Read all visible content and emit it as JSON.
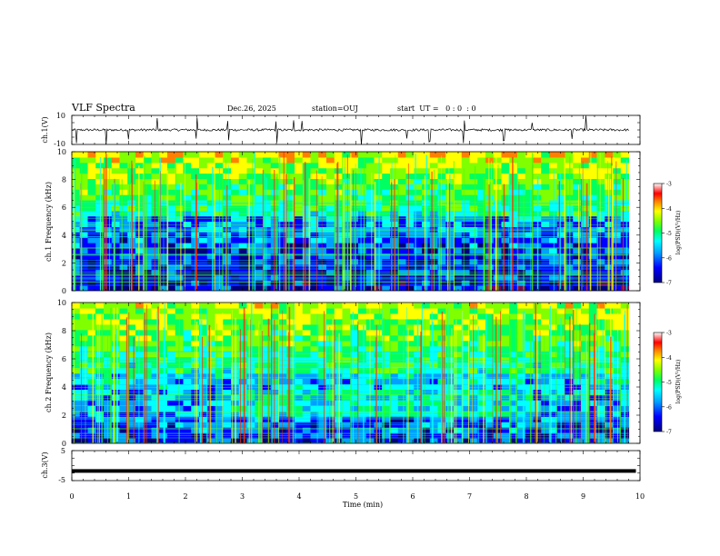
{
  "header": {
    "title": "VLF Spectra",
    "date": "Dec.26, 2025",
    "station": "station=OUJ",
    "start_ut": "start  UT =   0 : 0  : 0"
  },
  "colors": {
    "background": "#ffffff",
    "axis": "#000000",
    "colormap": [
      "#7a005a",
      "#000080",
      "#0000ff",
      "#00a0ff",
      "#00ffff",
      "#00ff60",
      "#80ff00",
      "#ffff00",
      "#ff8000",
      "#ff0000",
      "#ffffff"
    ]
  },
  "chart_data": [
    {
      "type": "line",
      "name": "ch1-waveform",
      "ylabel": "ch.1(V)",
      "ylim": [
        -10,
        10
      ],
      "ytick_labels": [
        "10",
        "-10"
      ],
      "xlim": [
        0,
        10
      ],
      "baseline": 0,
      "spike_times_min": [
        0.08,
        0.6,
        1.0,
        1.5,
        2.2,
        2.75,
        3.6,
        3.9,
        4.05,
        5.1,
        5.9,
        6.3,
        6.9,
        7.6,
        8.1,
        8.8,
        9.05
      ]
    },
    {
      "type": "heatmap",
      "name": "ch1-spectrogram",
      "ylabel": "ch.1 Frequency (kHz)",
      "xlim": [
        0,
        10
      ],
      "ylim": [
        0,
        10
      ],
      "ytick_labels": [
        "0",
        "2",
        "4",
        "6",
        "8",
        "10"
      ],
      "data_extent_min": [
        0,
        9.8
      ],
      "colorbar": {
        "label": "log(PSD)(V²/Hz)",
        "range": [
          -7,
          -3
        ],
        "tick_labels": [
          "-3",
          "-4",
          "-5",
          "-6",
          "-7"
        ]
      }
    },
    {
      "type": "heatmap",
      "name": "ch2-spectrogram",
      "ylabel": "ch.2 Frequency (kHz)",
      "xlim": [
        0,
        10
      ],
      "ylim": [
        0,
        10
      ],
      "ytick_labels": [
        "0",
        "2",
        "4",
        "6",
        "8",
        "10"
      ],
      "data_extent_min": [
        0,
        9.8
      ],
      "colorbar": {
        "label": "log(PSD)(V²/Hz)",
        "range": [
          -7,
          -3
        ],
        "tick_labels": [
          "-3",
          "-4",
          "-5",
          "-6",
          "-7"
        ]
      }
    },
    {
      "type": "line",
      "name": "ch3-waveform",
      "ylabel": "ch.3(V)",
      "ylim": [
        -5,
        5
      ],
      "ytick_labels": [
        "5",
        "-5"
      ],
      "xlim": [
        0,
        10
      ],
      "constant_value": -1.8,
      "xlabel": "Time  (min)",
      "xtick_labels": [
        "0",
        "1",
        "2",
        "3",
        "4",
        "5",
        "6",
        "7",
        "8",
        "9",
        "10"
      ]
    }
  ]
}
